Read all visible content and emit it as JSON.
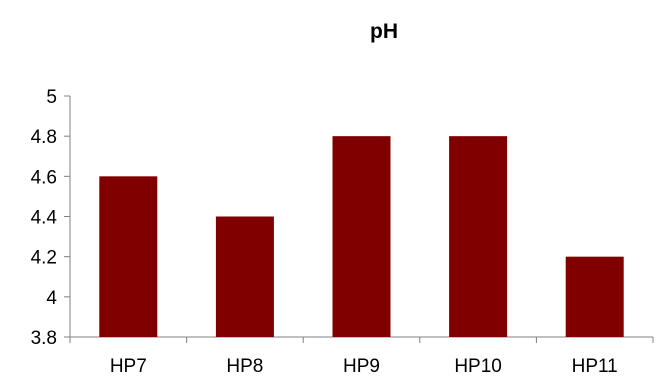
{
  "chart_data": {
    "type": "bar",
    "title": "pH",
    "xlabel": "",
    "ylabel": "",
    "categories": [
      "HP7",
      "HP8",
      "HP9",
      "HP10",
      "HP11"
    ],
    "values": [
      4.6,
      4.4,
      4.8,
      4.8,
      4.2
    ],
    "ylim": [
      3.8,
      5
    ],
    "yticks": [
      "3.8",
      "4",
      "4.2",
      "4.4",
      "4.6",
      "4.8",
      "5"
    ],
    "grid": false,
    "legend": "none",
    "bar_color": "#800000"
  }
}
